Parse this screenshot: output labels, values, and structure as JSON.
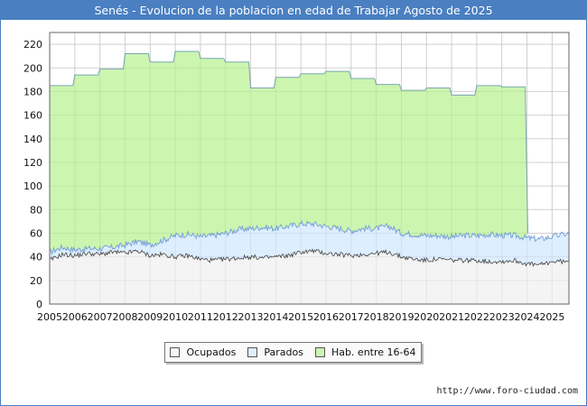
{
  "chart_data": {
    "type": "area",
    "title": "Senés - Evolucion de la poblacion en edad de Trabajar Agosto de 2025",
    "xlabel": "",
    "ylabel": "",
    "ylim": [
      0,
      230
    ],
    "xlim": [
      2005,
      2025.67
    ],
    "y_ticks": [
      0,
      20,
      40,
      60,
      80,
      100,
      120,
      140,
      160,
      180,
      200,
      220
    ],
    "x_tick_labels": [
      "2005",
      "2006",
      "2007",
      "2008",
      "2009",
      "2010",
      "2011",
      "2012",
      "2013",
      "2014",
      "2015",
      "2016",
      "2017",
      "2018",
      "2019",
      "2020",
      "2021",
      "2022",
      "2023",
      "2024",
      "2025"
    ],
    "grid": true,
    "legend_position": "bottom",
    "series": [
      {
        "name": "Hab. entre 16-64",
        "color": "#ccf5b0",
        "line_color": "#7aa7b0",
        "x": [
          2005,
          2006,
          2007,
          2008,
          2009,
          2010,
          2011,
          2012,
          2013,
          2014,
          2015,
          2016,
          2017,
          2018,
          2019,
          2020,
          2021,
          2022,
          2023,
          2024
        ],
        "values": [
          185,
          194,
          199,
          212,
          205,
          214,
          208,
          205,
          183,
          192,
          195,
          197,
          191,
          186,
          181,
          183,
          177,
          185,
          184,
          null
        ]
      },
      {
        "name": "Parados",
        "color": "#ddeeff",
        "line_color": "#7aa3d8",
        "x": [
          2005,
          2005.5,
          2006,
          2006.5,
          2007,
          2007.5,
          2008,
          2008.5,
          2009,
          2009.5,
          2010,
          2010.5,
          2011,
          2011.5,
          2012,
          2012.5,
          2013,
          2013.5,
          2014,
          2014.5,
          2015,
          2015.5,
          2016,
          2016.5,
          2017,
          2017.5,
          2018,
          2018.5,
          2019,
          2019.5,
          2020,
          2020.5,
          2021,
          2021.5,
          2022,
          2022.5,
          2023,
          2023.5,
          2024,
          2024.5,
          2025,
          2025.67
        ],
        "values": [
          44,
          48,
          46,
          47,
          47,
          48,
          50,
          53,
          50,
          54,
          58,
          59,
          57,
          58,
          60,
          63,
          64,
          65,
          64,
          66,
          68,
          68,
          66,
          64,
          62,
          64,
          64,
          66,
          60,
          59,
          58,
          58,
          57,
          58,
          58,
          59,
          58,
          58,
          56,
          55,
          57,
          60
        ]
      },
      {
        "name": "Ocupados",
        "color": "#f4f4f4",
        "line_color": "#444444",
        "x": [
          2005,
          2005.5,
          2006,
          2006.5,
          2007,
          2007.5,
          2008,
          2008.5,
          2009,
          2009.5,
          2010,
          2010.5,
          2011,
          2011.5,
          2012,
          2012.5,
          2013,
          2013.5,
          2014,
          2014.5,
          2015,
          2015.5,
          2016,
          2016.5,
          2017,
          2017.5,
          2018,
          2018.5,
          2019,
          2019.5,
          2020,
          2020.5,
          2021,
          2021.5,
          2022,
          2022.5,
          2023,
          2023.5,
          2024,
          2024.5,
          2025,
          2025.67
        ],
        "values": [
          37,
          42,
          41,
          43,
          42,
          44,
          43,
          45,
          41,
          42,
          40,
          41,
          38,
          37,
          38,
          39,
          40,
          39,
          40,
          41,
          44,
          45,
          43,
          42,
          41,
          42,
          43,
          44,
          40,
          38,
          37,
          38,
          37,
          37,
          37,
          36,
          36,
          37,
          34,
          33,
          36,
          36
        ]
      }
    ]
  },
  "legend": [
    "Ocupados",
    "Parados",
    "Hab. entre 16-64"
  ],
  "source": "http://www.foro-ciudad.com"
}
